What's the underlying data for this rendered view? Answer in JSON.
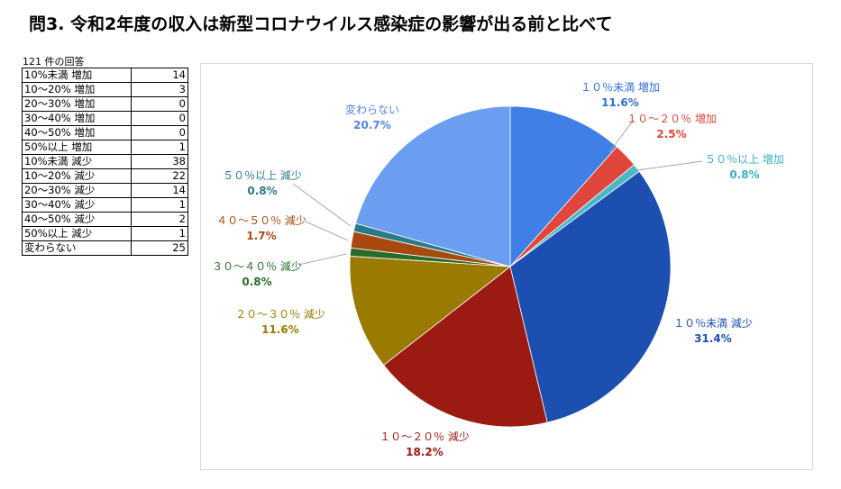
{
  "title": "問3. 令和2年度の収入は新型コロナウイルス感染症の影響が出る前と比べて",
  "table": {
    "caption": "121 件の回答",
    "rows": [
      {
        "label": "10%未満 増加",
        "value": 14
      },
      {
        "label": "10〜20% 増加",
        "value": 3
      },
      {
        "label": "20〜30% 増加",
        "value": 0
      },
      {
        "label": "30〜40% 増加",
        "value": 0
      },
      {
        "label": "40〜50% 増加",
        "value": 0
      },
      {
        "label": "50%以上 増加",
        "value": 1
      },
      {
        "label": "10%未満 減少",
        "value": 38
      },
      {
        "label": "10〜20% 減少",
        "value": 22
      },
      {
        "label": "20〜30% 減少",
        "value": 14
      },
      {
        "label": "30〜40% 減少",
        "value": 1
      },
      {
        "label": "40〜50% 減少",
        "value": 2
      },
      {
        "label": "50%以上 減少",
        "value": 1
      },
      {
        "label": "変わらない",
        "value": 25
      }
    ]
  },
  "chart_data": {
    "type": "pie",
    "slices": [
      {
        "label": "１０％未満 増加",
        "value": 14,
        "percent": "11.6%",
        "color": "#3f7fe6",
        "label_color": "#2f6fd6"
      },
      {
        "label": "１０〜２０％ 増加",
        "value": 3,
        "percent": "2.5%",
        "color": "#e0463b",
        "label_color": "#e0463b"
      },
      {
        "label": "５０％以上 増加",
        "value": 1,
        "percent": "0.8%",
        "color": "#4bb8c8",
        "label_color": "#3ab0c2"
      },
      {
        "label": "１０％未満 減少",
        "value": 38,
        "percent": "31.4%",
        "color": "#1c4fb0",
        "label_color": "#1c4fb0"
      },
      {
        "label": "１０〜２０％ 減少",
        "value": 22,
        "percent": "18.2%",
        "color": "#9b1a12",
        "label_color": "#9b1a12"
      },
      {
        "label": "２０〜３０％ 減少",
        "value": 14,
        "percent": "11.6%",
        "color": "#9a7a00",
        "label_color": "#9a7a00"
      },
      {
        "label": "３０〜４０％ 減少",
        "value": 1,
        "percent": "0.8%",
        "color": "#2a6b2a",
        "label_color": "#2a6b2a"
      },
      {
        "label": "４０〜５０％ 減少",
        "value": 2,
        "percent": "1.7%",
        "color": "#a84a10",
        "label_color": "#a84a10"
      },
      {
        "label": "５０％以上 減少",
        "value": 1,
        "percent": "0.8%",
        "color": "#2a7a88",
        "label_color": "#2a7a88"
      },
      {
        "label": "変わらない",
        "value": 25,
        "percent": "20.7%",
        "color": "#6b9ef0",
        "label_color": "#4f86e6"
      }
    ]
  }
}
